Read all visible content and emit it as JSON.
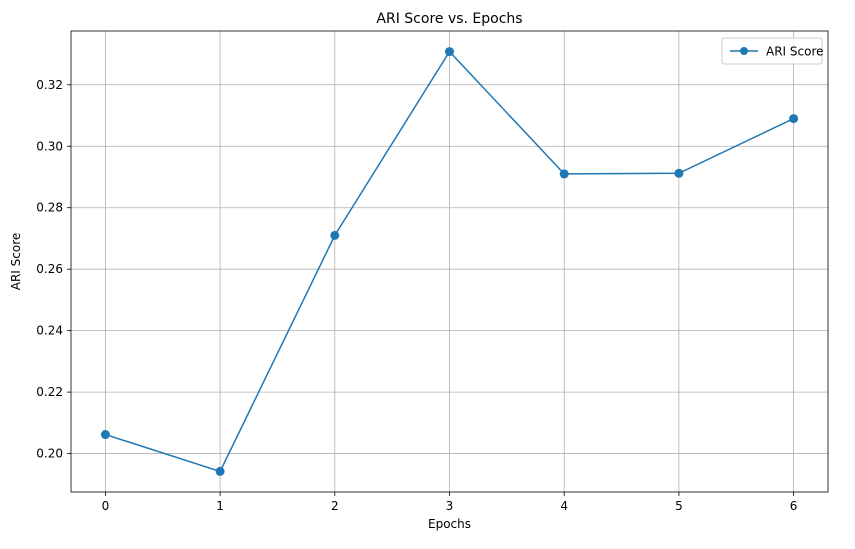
{
  "chart_data": {
    "type": "line",
    "title": "ARI Score vs. Epochs",
    "xlabel": "Epochs",
    "ylabel": "ARI Score",
    "xlim": [
      -0.3,
      6.3
    ],
    "ylim": [
      0.1875,
      0.3375
    ],
    "x_ticks": [
      0,
      1,
      2,
      3,
      4,
      5,
      6
    ],
    "y_ticks": [
      0.2,
      0.22,
      0.24,
      0.26,
      0.28,
      0.3,
      0.32
    ],
    "y_tick_labels": [
      "0.20",
      "0.22",
      "0.24",
      "0.26",
      "0.28",
      "0.30",
      "0.32"
    ],
    "grid": true,
    "legend_position": "top-right",
    "series": [
      {
        "name": "ARI Score",
        "color": "#1f77b4",
        "marker": "circle",
        "x": [
          0,
          1,
          2,
          3,
          4,
          5,
          6
        ],
        "y": [
          0.2062,
          0.1942,
          0.271,
          0.3308,
          0.291,
          0.2912,
          0.309
        ]
      }
    ]
  }
}
